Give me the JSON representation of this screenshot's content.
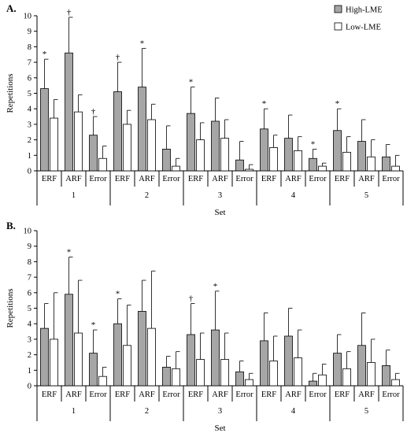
{
  "legend": {
    "high_label": "High-LME",
    "low_label": "Low-LME",
    "placement": "top-right",
    "high_color": "#a6a6a6",
    "low_color": "#ffffff"
  },
  "chart_data": [
    {
      "panel_label": "A.",
      "type": "bar",
      "ylabel": "Repetitions",
      "xlabel": "Set",
      "ylim": [
        0,
        10
      ],
      "yticks": [
        0,
        1,
        2,
        3,
        4,
        5,
        6,
        7,
        8,
        9,
        10
      ],
      "groups": [
        "1",
        "2",
        "3",
        "4",
        "5"
      ],
      "categories": [
        "ERF",
        "ARF",
        "Error"
      ],
      "series": [
        {
          "name": "High-LME",
          "values": [
            [
              5.3,
              7.6,
              2.3
            ],
            [
              5.1,
              5.4,
              1.4
            ],
            [
              3.7,
              3.2,
              0.7
            ],
            [
              2.7,
              2.1,
              0.8
            ],
            [
              2.6,
              1.9,
              0.9
            ]
          ],
          "errors": [
            [
              1.9,
              2.3,
              1.2
            ],
            [
              1.9,
              2.5,
              1.5
            ],
            [
              1.7,
              1.5,
              1.2
            ],
            [
              1.3,
              1.5,
              0.6
            ],
            [
              1.4,
              1.4,
              0.8
            ]
          ]
        },
        {
          "name": "Low-LME",
          "values": [
            [
              3.4,
              3.8,
              0.8
            ],
            [
              3.0,
              3.3,
              0.3
            ],
            [
              2.0,
              2.1,
              0.1
            ],
            [
              1.5,
              1.3,
              0.3
            ],
            [
              1.2,
              0.9,
              0.3
            ]
          ],
          "errors": [
            [
              1.2,
              1.1,
              0.8
            ],
            [
              0.9,
              1.0,
              0.5
            ],
            [
              1.1,
              1.2,
              0.3
            ],
            [
              0.8,
              0.9,
              0.2
            ],
            [
              1.0,
              1.1,
              0.7
            ]
          ]
        }
      ],
      "markers": [
        [
          "*",
          "†",
          "†"
        ],
        [
          "†",
          "*",
          ""
        ],
        [
          "*",
          "",
          ""
        ],
        [
          "*",
          "",
          "*"
        ],
        [
          "*",
          "",
          ""
        ]
      ]
    },
    {
      "panel_label": "B.",
      "type": "bar",
      "ylabel": "Repetitions",
      "xlabel": "Set",
      "ylim": [
        0,
        10
      ],
      "yticks": [
        0,
        1,
        2,
        3,
        4,
        5,
        6,
        7,
        8,
        9,
        10
      ],
      "groups": [
        "1",
        "2",
        "3",
        "4",
        "5"
      ],
      "categories": [
        "ERF",
        "ARF",
        "Error"
      ],
      "series": [
        {
          "name": "High-LME",
          "values": [
            [
              3.7,
              5.9,
              2.1
            ],
            [
              4.0,
              4.8,
              1.2
            ],
            [
              3.3,
              3.6,
              0.9
            ],
            [
              2.9,
              3.2,
              0.3
            ],
            [
              2.1,
              2.6,
              1.3
            ]
          ],
          "errors": [
            [
              1.6,
              2.4,
              1.5
            ],
            [
              1.6,
              2.0,
              0.7
            ],
            [
              2.0,
              2.5,
              0.7
            ],
            [
              1.8,
              1.8,
              0.5
            ],
            [
              1.2,
              2.1,
              1.0
            ]
          ]
        },
        {
          "name": "Low-LME",
          "values": [
            [
              3.0,
              3.4,
              0.6
            ],
            [
              2.6,
              3.7,
              1.1
            ],
            [
              1.7,
              1.7,
              0.4
            ],
            [
              1.6,
              1.8,
              0.7
            ],
            [
              1.1,
              1.5,
              0.4
            ]
          ],
          "errors": [
            [
              3.0,
              3.4,
              0.6
            ],
            [
              2.6,
              3.7,
              1.1
            ],
            [
              1.7,
              1.7,
              0.4
            ],
            [
              1.6,
              1.8,
              0.7
            ],
            [
              1.1,
              1.5,
              0.4
            ]
          ]
        }
      ],
      "markers": [
        [
          "",
          "*",
          "*"
        ],
        [
          "*",
          "",
          ""
        ],
        [
          "†",
          "*",
          ""
        ],
        [
          "",
          "",
          ""
        ],
        [
          "",
          "",
          ""
        ]
      ]
    }
  ]
}
